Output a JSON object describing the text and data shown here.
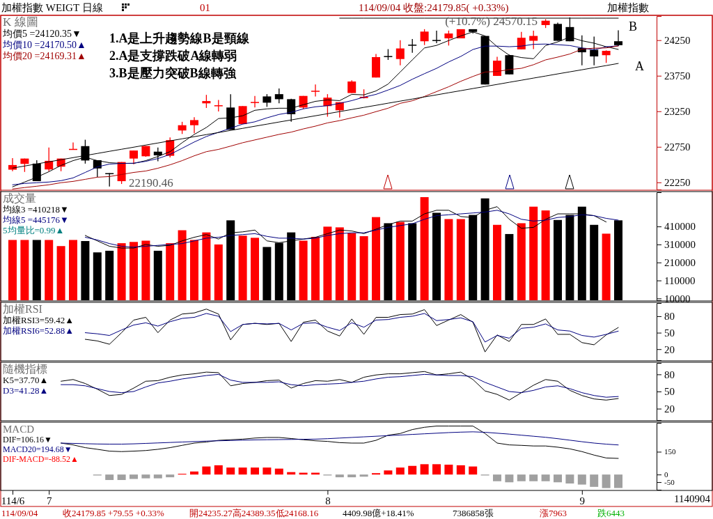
{
  "chart_data": [
    {
      "type": "candlestick",
      "title": "K 線圖",
      "legend": "top left",
      "tick_labels": "y",
      "categories": [
        null,
        null,
        null,
        null,
        null,
        null,
        null,
        null,
        null,
        null,
        null,
        null,
        null,
        null,
        null,
        null,
        null,
        null,
        null,
        null,
        null,
        null,
        null,
        null,
        null,
        null,
        null,
        null,
        null,
        null,
        null,
        null,
        null,
        null,
        null,
        null,
        null,
        null,
        null,
        null,
        null,
        null,
        null,
        null,
        null,
        null,
        null,
        null,
        null,
        null,
        null
      ],
      "ylim": [
        22150,
        24590
      ],
      "yticks": [
        22250,
        22750,
        23250,
        23750,
        24250
      ],
      "ohlc": [
        [
          22429,
          22592,
          22407,
          22494
        ],
        [
          22510,
          22585,
          22397,
          22585
        ],
        [
          22514,
          22562,
          22267,
          22267
        ],
        [
          22432,
          22740,
          22407,
          22553
        ],
        [
          22471,
          22585,
          22407,
          22585
        ],
        [
          22715,
          22811,
          22715,
          22721
        ],
        [
          22760,
          22850,
          22514,
          22558
        ],
        [
          22562,
          22562,
          22325,
          22446
        ],
        [
          22380,
          22380,
          22190.46,
          22374
        ],
        [
          22267,
          22536,
          22228,
          22536
        ],
        [
          22585,
          22698,
          22504,
          22698
        ],
        [
          22617,
          22762,
          22610,
          22762
        ],
        [
          22682,
          22740,
          22546,
          22630
        ],
        [
          22624,
          22883,
          22601,
          22844
        ],
        [
          22980,
          23102,
          22931,
          23054
        ],
        [
          23054,
          23167,
          22941,
          23126
        ],
        [
          23362,
          23481,
          23297,
          23394
        ],
        [
          23328,
          23410,
          23248,
          23335
        ],
        [
          23303,
          23491,
          22990,
          22990
        ],
        [
          23070,
          23323,
          23070,
          23323
        ],
        [
          23371,
          23466,
          23303,
          23381
        ],
        [
          23459,
          23491,
          23313,
          23371
        ],
        [
          23491,
          23572,
          23362,
          23420
        ],
        [
          23420,
          23427,
          23102,
          23209
        ],
        [
          23303,
          23466,
          23281,
          23466
        ],
        [
          23532,
          23627,
          23459,
          23539
        ],
        [
          23323,
          23491,
          23174,
          23442
        ],
        [
          23264,
          23378,
          23161,
          23378
        ],
        [
          23507,
          23685,
          23507,
          23669
        ],
        [
          23436,
          23559,
          23430,
          23454
        ],
        [
          23725,
          24056,
          23725,
          24012
        ],
        [
          24027,
          24124,
          23973,
          24022
        ],
        [
          23985,
          24249,
          23897,
          24134
        ],
        [
          24187,
          24266,
          24073,
          24182
        ],
        [
          24235,
          24405,
          24182,
          24371
        ],
        [
          24253,
          24385,
          24208,
          24249
        ],
        [
          24276,
          24385,
          24175,
          24344
        ],
        [
          24276,
          24405,
          24276,
          24405
        ],
        [
          24405,
          24405,
          24344,
          24367
        ],
        [
          24310,
          24310,
          23627,
          23627
        ],
        [
          23748,
          24016,
          23748,
          23962
        ],
        [
          24039,
          24046,
          23769,
          23769
        ],
        [
          24121,
          24367,
          24121,
          24284
        ],
        [
          24242,
          24385,
          24124,
          24310
        ],
        [
          24463,
          24547,
          24422,
          24524
        ],
        [
          24479,
          24498,
          24242,
          24242
        ],
        [
          24435,
          24570.15,
          24235,
          24235
        ],
        [
          24141,
          24317,
          23897,
          24080
        ],
        [
          24114,
          24300,
          23897,
          24022
        ],
        [
          24039,
          24107,
          23931,
          24100.3
        ],
        [
          24235.27,
          24389.35,
          24168.16,
          24179.85
        ]
      ],
      "colors": [
        "#ff0000",
        "#ff0000",
        "#000000",
        "#ff0000",
        "#ff0000",
        "#ff0000",
        "#000000",
        "#000000",
        "#000000",
        "#ff0000",
        "#ff0000",
        "#ff0000",
        "#000000",
        "#ff0000",
        "#ff0000",
        "#ff0000",
        "#ff0000",
        "#ff0000",
        "#000000",
        "#ff0000",
        "#ff0000",
        "#000000",
        "#000000",
        "#000000",
        "#ff0000",
        "#ff0000",
        "#ff0000",
        "#ff0000",
        "#ff0000",
        "#ff0000",
        "#ff0000",
        "#000000",
        "#ff0000",
        "#000000",
        "#ff0000",
        "#000000",
        "#ff0000",
        "#ff0000",
        "#000000",
        "#000000",
        "#ff0000",
        "#000000",
        "#ff0000",
        "#ff0000",
        "#ff0000",
        "#000000",
        "#000000",
        "#000000",
        "#000000",
        "#ff0000",
        "#000000"
      ],
      "series": [
        {
          "type": "line",
          "name": "均價5 =24120.35▼",
          "color": "#000000",
          "values": [
            22187,
            22255,
            22323,
            22400,
            22488,
            22556,
            22604,
            22556,
            22527,
            22517,
            22517,
            22556,
            22614,
            22682,
            22808,
            22925,
            23022,
            23148,
            23158,
            23187,
            23264,
            23284,
            23293,
            23293,
            23342,
            23390,
            23410,
            23400,
            23488,
            23481,
            23536,
            23633,
            23802,
            23973,
            24141,
            24177,
            24245,
            24310,
            24367,
            24310,
            24158,
            24039,
            24006,
            23989,
            24175,
            24226,
            24294,
            24242,
            24208,
            24158,
            24120.35
          ]
        },
        {
          "type": "line",
          "name": "均價10 =24170.50▲",
          "color": "#000080",
          "values": [
            22216,
            22235,
            22245,
            22255,
            22274,
            22313,
            22390,
            22468,
            22507,
            22517,
            22520,
            22546,
            22585,
            22643,
            22730,
            22818,
            22895,
            22954,
            23012,
            23070,
            23102,
            23158,
            23206,
            23235,
            23284,
            23313,
            23329,
            23362,
            23400,
            23449,
            23488,
            23549,
            23614,
            23701,
            23779,
            23854,
            23944,
            24022,
            24119,
            24167,
            24167,
            24158,
            24167,
            24192,
            24196,
            24187,
            24175,
            24141,
            24114,
            24158,
            24170.5
          ]
        },
        {
          "type": "line",
          "name": "均價20 =24169.31▲",
          "color": "#a00000",
          "values": [
            22157,
            22177,
            22196,
            22216,
            22245,
            22264,
            22293,
            22323,
            22332,
            22361,
            22390,
            22410,
            22449,
            22497,
            22556,
            22624,
            22682,
            22714,
            22760,
            22808,
            22847,
            22886,
            22925,
            22957,
            23002,
            23041,
            23087,
            23119,
            23158,
            23195,
            23245,
            23293,
            23362,
            23398,
            23459,
            23527,
            23595,
            23672,
            23740,
            23802,
            23810,
            23837,
            23854,
            23905,
            23973,
            24012,
            24056,
            24124,
            24138,
            24141,
            24169.31
          ]
        },
        {
          "type": "line",
          "color": "#000000",
          "values": [
            22451,
            22480,
            22510,
            22539,
            22569,
            22598,
            22628,
            22657,
            22687,
            22716,
            22745,
            22775,
            22804,
            22834,
            22863,
            22893,
            22922,
            22951,
            22981,
            23010,
            23040,
            23069,
            23099,
            23128,
            23158,
            23187,
            23216,
            23246,
            23275,
            23305,
            23334,
            23364,
            23393,
            23422,
            23452,
            23481,
            23511,
            23540,
            23570,
            23599,
            23628,
            23658,
            23687,
            23717,
            23746,
            23776,
            23805,
            23834,
            23864,
            23893,
            23923
          ]
        },
        {
          "type": "line",
          "color": "#000000",
          "values": [
            null,
            null,
            null,
            null,
            null,
            null,
            null,
            null,
            null,
            null,
            null,
            null,
            null,
            null,
            null,
            null,
            null,
            null,
            null,
            null,
            null,
            null,
            null,
            null,
            null,
            null,
            null,
            24560,
            24560,
            24560,
            24560,
            24560,
            24560,
            24560,
            24560,
            24560,
            24560,
            24560,
            24560,
            24560,
            24560,
            24560,
            24560,
            24560,
            24560,
            24560,
            24560,
            24560,
            24560,
            24560,
            24560
          ]
        }
      ],
      "annotations": [
        "加權指數 WEIGT 日線",
        "01",
        "114/09/04 收盤:24179.85( +0.33%)",
        "加權指數",
        "1.A是上升趨勢線B是頸線",
        "2.A是支撐跌破A線轉弱",
        "3.B是壓力突破B線轉強",
        "22190.46",
        {
          "text": "(+10.7%) 24570.15",
          "y": 24570.15
        },
        "B",
        "A"
      ]
    },
    {
      "type": "bar",
      "title": "成交量",
      "legend": "top left",
      "tick_labels": "y",
      "categories": [
        null,
        null,
        null,
        null,
        null,
        null,
        null,
        null,
        null,
        null,
        null,
        null,
        null,
        null,
        null,
        null,
        null,
        null,
        null,
        null,
        null,
        null,
        null,
        null,
        null,
        null,
        null,
        null,
        null,
        null,
        null,
        null,
        null,
        null,
        null,
        null,
        null,
        null,
        null,
        null,
        null,
        null,
        null,
        null,
        null,
        null,
        null,
        null,
        null,
        null,
        null
      ],
      "ylim": [
        0,
        600000
      ],
      "yticks": [
        10000,
        110000,
        210000,
        310000,
        410000
      ],
      "series": [
        {
          "values": [
            335000,
            335000,
            335000,
            335000,
            301000,
            335000,
            329000,
            266000,
            275000,
            317000,
            324000,
            331000,
            275000,
            317000,
            389000,
            335000,
            377000,
            310000,
            444000,
            359000,
            347000,
            296000,
            319000,
            377000,
            331000,
            352000,
            409000,
            405000,
            373000,
            356000,
            462000,
            428000,
            435000,
            428000,
            573000,
            486000,
            451000,
            451000,
            474000,
            566000,
            419000,
            368000,
            428000,
            520000,
            499000,
            446000,
            474000,
            520000,
            419000,
            370000,
            444000
          ],
          "colors": [
            "#ff0000",
            "#ff0000",
            "#000000",
            "#ff0000",
            "#ff0000",
            "#ff0000",
            "#000000",
            "#000000",
            "#000000",
            "#ff0000",
            "#ff0000",
            "#ff0000",
            "#000000",
            "#ff0000",
            "#ff0000",
            "#ff0000",
            "#ff0000",
            "#ff0000",
            "#000000",
            "#ff0000",
            "#ff0000",
            "#000000",
            "#000000",
            "#000000",
            "#ff0000",
            "#ff0000",
            "#ff0000",
            "#ff0000",
            "#ff0000",
            "#ff0000",
            "#ff0000",
            "#000000",
            "#ff0000",
            "#000000",
            "#ff0000",
            "#000000",
            "#ff0000",
            "#ff0000",
            "#000000",
            "#000000",
            "#ff0000",
            "#000000",
            "#ff0000",
            "#ff0000",
            "#ff0000",
            "#000000",
            "#000000",
            "#000000",
            "#000000",
            "#ff0000",
            "#000000"
          ]
        },
        {
          "type": "line",
          "name": "均線3 =410218▼",
          "color": "#000000",
          "values": [
            null,
            null,
            null,
            null,
            null,
            null,
            360000,
            330000,
            300000,
            290000,
            290000,
            310000,
            300000,
            305000,
            330000,
            350000,
            365000,
            340000,
            375000,
            380000,
            390000,
            330000,
            320000,
            330000,
            340000,
            350000,
            370000,
            390000,
            385000,
            370000,
            395000,
            420000,
            440000,
            440000,
            480000,
            500000,
            500000,
            465000,
            460000,
            500000,
            520000,
            450000,
            400000,
            405000,
            450000,
            480000,
            480000,
            480000,
            470000,
            435000,
            null
          ]
        },
        {
          "type": "line",
          "name": "均線5 =445176▼",
          "color": "#000080",
          "values": [
            null,
            null,
            null,
            null,
            null,
            null,
            350000,
            335000,
            315000,
            300000,
            295000,
            300000,
            305000,
            310000,
            315000,
            330000,
            345000,
            350000,
            360000,
            365000,
            370000,
            355000,
            345000,
            345000,
            340000,
            345000,
            360000,
            370000,
            375000,
            375000,
            390000,
            405000,
            415000,
            425000,
            450000,
            470000,
            475000,
            480000,
            485000,
            490000,
            500000,
            480000,
            450000,
            440000,
            445000,
            460000,
            465000,
            475000,
            470000,
            455000,
            445176
          ]
        }
      ],
      "annotations": [
        "5均量比=0.99▲"
      ]
    },
    {
      "type": "line",
      "title": "加權RSI",
      "legend": "top left",
      "tick_labels": "y",
      "categories": [
        null,
        null,
        null,
        null,
        null,
        null,
        null,
        null,
        null,
        null,
        null,
        null,
        null,
        null,
        null,
        null,
        null,
        null,
        null,
        null,
        null,
        null,
        null,
        null,
        null,
        null,
        null,
        null,
        null,
        null,
        null,
        null,
        null,
        null,
        null,
        null,
        null,
        null,
        null,
        null,
        null,
        null,
        null,
        null,
        null,
        null,
        null,
        null,
        null,
        null,
        null
      ],
      "ylim": [
        0,
        104
      ],
      "yticks": [
        20,
        50,
        80
      ],
      "series": [
        {
          "name": "加權RSI3=59.42▲",
          "color": "#000000",
          "values": [
            null,
            null,
            null,
            null,
            null,
            null,
            38,
            35,
            29,
            50,
            73,
            78,
            50,
            73,
            84,
            86,
            93,
            84,
            37,
            65,
            67,
            65,
            67,
            34,
            69,
            73,
            53,
            44,
            75,
            47,
            78,
            78,
            83,
            84,
            92,
            63,
            73,
            83,
            69,
            15,
            46,
            34,
            65,
            65,
            75,
            47,
            47,
            32,
            28,
            46,
            59.42
          ]
        },
        {
          "name": "加權RSI6=52.88▲",
          "color": "#000080",
          "values": [
            null,
            null,
            null,
            null,
            null,
            null,
            50,
            48,
            45,
            55,
            64,
            68,
            62,
            70,
            76,
            78,
            85,
            80,
            52,
            65,
            67,
            66,
            67,
            55,
            67,
            68,
            60,
            54,
            68,
            60,
            73,
            74,
            78,
            80,
            85,
            72,
            74,
            77,
            70,
            33,
            45,
            40,
            58,
            60,
            66,
            55,
            53,
            45,
            42,
            47,
            52.88
          ]
        }
      ]
    },
    {
      "type": "line",
      "title": "隨機指標",
      "legend": "top left",
      "tick_labels": "y",
      "categories": [
        null,
        null,
        null,
        null,
        null,
        null,
        null,
        null,
        null,
        null,
        null,
        null,
        null,
        null,
        null,
        null,
        null,
        null,
        null,
        null,
        null,
        null,
        null,
        null,
        null,
        null,
        null,
        null,
        null,
        null,
        null,
        null,
        null,
        null,
        null,
        null,
        null,
        null,
        null,
        null,
        null,
        null,
        null,
        null,
        null,
        null,
        null,
        null,
        null,
        null,
        null
      ],
      "ylim": [
        0,
        100
      ],
      "yticks": [
        20,
        50,
        80
      ],
      "series": [
        {
          "name": "K5=37.70▲",
          "color": "#000000",
          "values": [
            null,
            null,
            null,
            null,
            68,
            71,
            64,
            54,
            43,
            45,
            56,
            68,
            69,
            75,
            79,
            81,
            84,
            83,
            60,
            64,
            66,
            69,
            70,
            56,
            64,
            69,
            68,
            71,
            66,
            75,
            79,
            81,
            81,
            83,
            85,
            79,
            81,
            84,
            71,
            51,
            45,
            35,
            48,
            61,
            71,
            68,
            52,
            43,
            37,
            35,
            37.7
          ]
        },
        {
          "name": "D3=41.28▲",
          "color": "#000080",
          "values": [
            null,
            null,
            null,
            null,
            62,
            62,
            60,
            55,
            50,
            48,
            50,
            58,
            65,
            68,
            72,
            75,
            78,
            80,
            70,
            66,
            66,
            66,
            67,
            62,
            60,
            62,
            63,
            64,
            66,
            68,
            72,
            75,
            76,
            78,
            80,
            79,
            78,
            78,
            76,
            66,
            58,
            50,
            48,
            52,
            58,
            60,
            55,
            48,
            43,
            40,
            41.28
          ]
        }
      ]
    },
    {
      "type": "line",
      "title": "MACD",
      "legend": "top left",
      "categories": [
        "114/6",
        null,
        null,
        "7",
        null,
        null,
        null,
        null,
        null,
        null,
        null,
        null,
        null,
        null,
        null,
        null,
        null,
        null,
        null,
        null,
        null,
        null,
        null,
        null,
        null,
        null,
        "8",
        null,
        null,
        null,
        null,
        null,
        null,
        null,
        null,
        null,
        null,
        null,
        null,
        null,
        null,
        null,
        null,
        null,
        null,
        null,
        null,
        "9",
        null,
        null,
        null
      ],
      "ylim": [
        -100,
        340
      ],
      "yticks": [
        -50,
        0,
        150
      ],
      "series": [
        {
          "name": "DIF=106.16▼",
          "color": "#000000",
          "values": [
            null,
            null,
            null,
            null,
            207,
            195,
            177,
            166,
            154,
            151,
            154,
            158,
            166,
            177,
            192,
            207,
            214,
            225,
            229,
            233,
            240,
            244,
            244,
            237,
            229,
            222,
            218,
            210,
            207,
            207,
            225,
            259,
            270,
            296,
            311,
            319,
            319,
            319,
            319,
            270,
            207,
            195,
            192,
            188,
            188,
            180,
            169,
            151,
            128,
            109,
            106.16
          ]
        },
        {
          "name": "MACD20=194.68▼",
          "color": "#000080",
          "values": [
            null,
            null,
            null,
            null,
            207,
            205,
            203,
            201,
            200,
            200,
            202,
            205,
            208,
            211,
            214,
            217,
            220,
            222,
            224,
            226,
            228,
            229,
            230,
            231,
            232,
            233,
            236,
            240,
            244,
            248,
            252,
            256,
            260,
            264,
            268,
            272,
            276,
            279,
            281,
            278,
            272,
            266,
            259,
            252,
            245,
            236,
            226,
            216,
            207,
            200,
            194.68
          ]
        },
        {
          "type": "bar",
          "name": "DIF-MACD=-88.52▲",
          "color": "#ff0000",
          "values": [
            null,
            null,
            null,
            null,
            null,
            null,
            null,
            -6,
            -36,
            -36,
            -29,
            -25,
            -25,
            -18,
            5,
            20,
            53,
            61,
            46,
            46,
            46,
            46,
            39,
            16,
            12,
            12,
            -6,
            -18,
            -18,
            -14,
            9,
            27,
            46,
            57,
            68,
            68,
            65,
            61,
            53,
            -6,
            -44,
            -51,
            -44,
            -44,
            -44,
            -51,
            -59,
            -66,
            -81,
            -89,
            -88.52
          ],
          "colors": [
            null,
            null,
            null,
            null,
            null,
            null,
            null,
            "#a0a0a0",
            "#a0a0a0",
            "#a0a0a0",
            "#a0a0a0",
            "#a0a0a0",
            "#a0a0a0",
            "#a0a0a0",
            "#ff0000",
            "#ff0000",
            "#ff0000",
            "#ff0000",
            "#ff0000",
            "#ff0000",
            "#ff0000",
            "#ff0000",
            "#ff0000",
            "#ff0000",
            "#ff0000",
            "#ff0000",
            "#a0a0a0",
            "#a0a0a0",
            "#a0a0a0",
            "#a0a0a0",
            "#ff0000",
            "#ff0000",
            "#ff0000",
            "#ff0000",
            "#ff0000",
            "#ff0000",
            "#ff0000",
            "#ff0000",
            "#ff0000",
            "#a0a0a0",
            "#a0a0a0",
            "#a0a0a0",
            "#a0a0a0",
            "#a0a0a0",
            "#a0a0a0",
            "#a0a0a0",
            "#a0a0a0",
            "#a0a0a0",
            "#a0a0a0",
            "#a0a0a0",
            "#a0a0a0"
          ]
        }
      ],
      "annotations": [
        "1140904",
        "114/09/04",
        "收24179.85 +79.55 +0.33%",
        "開24235.27高24389.35低24168.16",
        "4409.98億+18.41%",
        "7386858張",
        "漲7963",
        "跌6443"
      ]
    }
  ]
}
